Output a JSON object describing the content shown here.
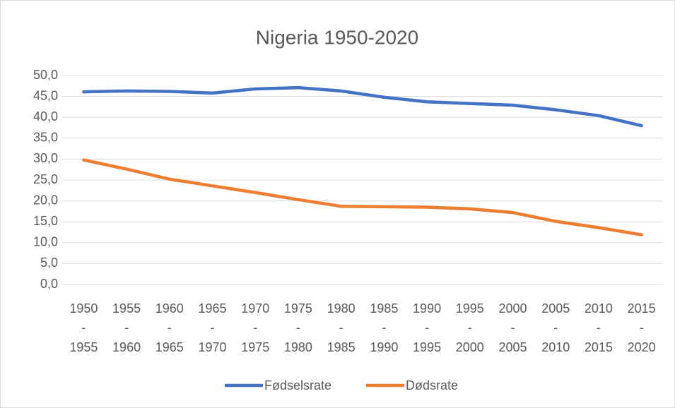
{
  "chart_data": {
    "type": "line",
    "title": "Nigeria 1950-2020",
    "categories": [
      "1950-1955",
      "1955-1960",
      "1960-1965",
      "1965-1970",
      "1970-1975",
      "1975-1980",
      "1980-1985",
      "1985-1990",
      "1990-1995",
      "1995-2000",
      "2000-2005",
      "2005-2010",
      "2010-2015",
      "2015-2020"
    ],
    "series": [
      {
        "name": "Fødselsrate",
        "color": "#4472c4",
        "values": [
          46.1,
          46.3,
          46.2,
          45.8,
          46.8,
          47.1,
          46.3,
          44.8,
          43.7,
          43.3,
          42.9,
          41.8,
          40.4,
          38.0
        ]
      },
      {
        "name": "Dødsrate",
        "color": "#ed7d31",
        "values": [
          29.8,
          27.6,
          25.2,
          23.6,
          22.0,
          20.3,
          18.7,
          18.6,
          18.5,
          18.1,
          17.2,
          15.1,
          13.6,
          11.9
        ]
      }
    ],
    "ylim": [
      0,
      50
    ],
    "yticks": [
      {
        "value": 0,
        "label": "0,0"
      },
      {
        "value": 5,
        "label": "5,0"
      },
      {
        "value": 10,
        "label": "10,0"
      },
      {
        "value": 15,
        "label": "15,0"
      },
      {
        "value": 20,
        "label": "20,0"
      },
      {
        "value": 25,
        "label": "25,0"
      },
      {
        "value": 30,
        "label": "30,0"
      },
      {
        "value": 35,
        "label": "35,0"
      },
      {
        "value": 40,
        "label": "40,0"
      },
      {
        "value": 45,
        "label": "45,0"
      },
      {
        "value": 50,
        "label": "50,0"
      }
    ],
    "grid": true,
    "legend": "bottom"
  }
}
